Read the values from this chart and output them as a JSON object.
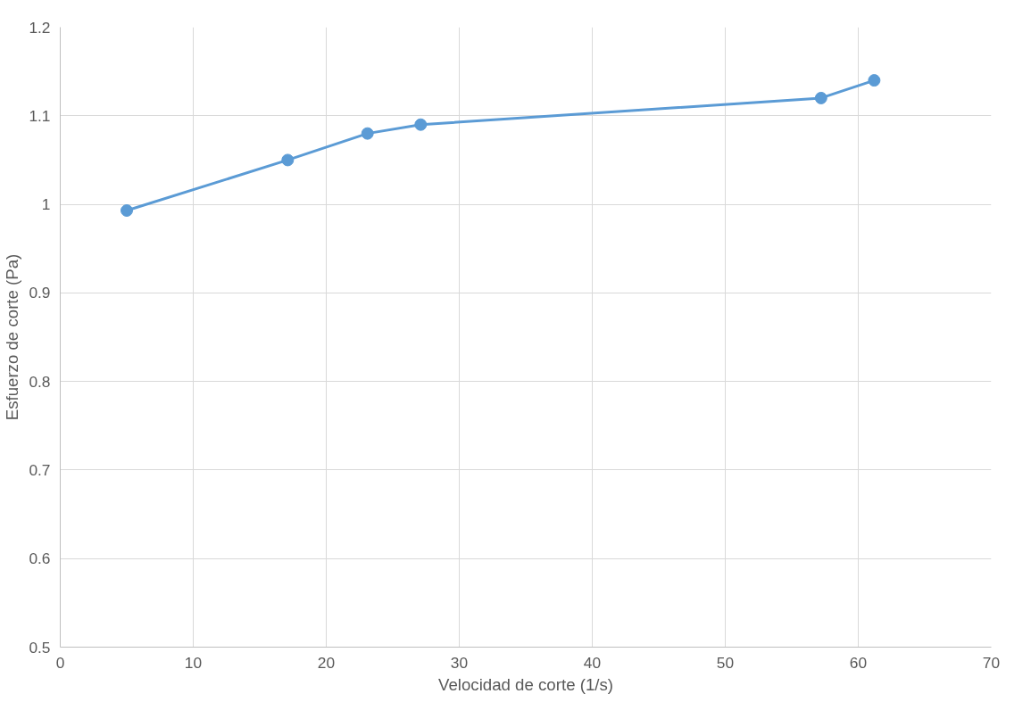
{
  "chart_data": {
    "type": "line",
    "xlabel": "Velocidad de corte (1/s)",
    "ylabel": "Esfuerzo de corte (Pa)",
    "x": [
      5,
      17.1,
      23.1,
      27.1,
      57.2,
      61.2
    ],
    "series": [
      {
        "color": "#5b9bd5",
        "values": [
          0.993,
          1.05,
          1.08,
          1.09,
          1.12,
          1.14
        ]
      }
    ],
    "xlim": [
      0,
      70
    ],
    "xticks": [
      0,
      10,
      20,
      30,
      40,
      50,
      60,
      70
    ],
    "ylim": [
      0.5,
      1.2
    ],
    "yticks": [
      {
        "value": 0.5,
        "label": "0.5"
      },
      {
        "value": 0.6,
        "label": "0.6"
      },
      {
        "value": 0.7,
        "label": "0.7"
      },
      {
        "value": 0.8,
        "label": "0.8"
      },
      {
        "value": 0.9,
        "label": "0.9"
      },
      {
        "value": 1,
        "label": "1"
      },
      {
        "value": 1.1,
        "label": "1.1"
      },
      {
        "value": 1.2,
        "label": "1.2"
      }
    ],
    "grid": true,
    "marker": "circle",
    "line_style": "solid"
  }
}
